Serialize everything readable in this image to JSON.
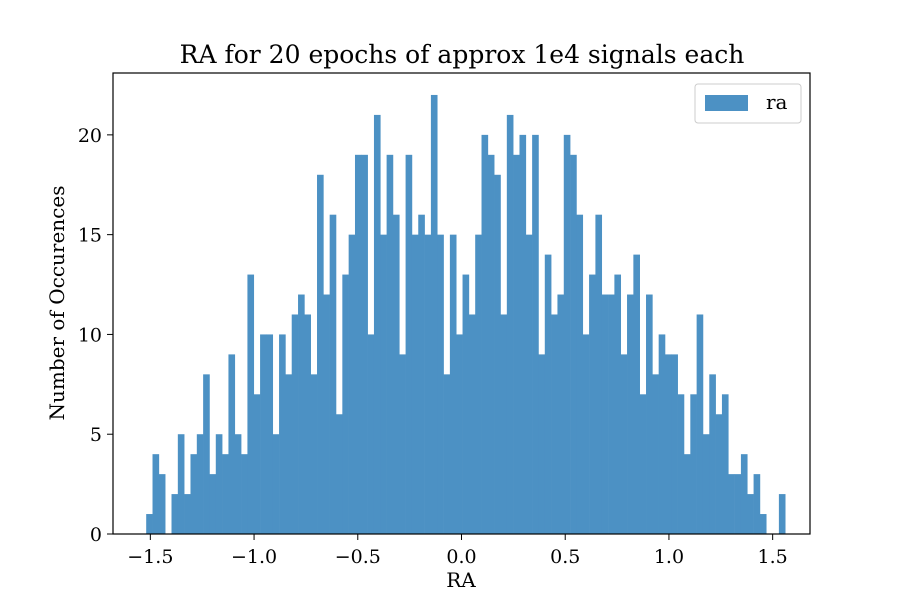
{
  "chart_data": {
    "type": "bar",
    "title": "RA for 20 epochs of approx 1e4 signals each",
    "xlabel": "RA",
    "ylabel": "Number of Occurences",
    "xlim": [
      -1.68,
      1.68
    ],
    "ylim": [
      0,
      23.1
    ],
    "xticks": [
      -1.5,
      -1.0,
      -0.5,
      0.0,
      0.5,
      1.0,
      1.5
    ],
    "xtick_labels": [
      "−1.5",
      "−1.0",
      "−0.5",
      "0.0",
      "0.5",
      "1.0",
      "1.5"
    ],
    "yticks": [
      0,
      5,
      10,
      15,
      20
    ],
    "ytick_labels": [
      "0",
      "5",
      "10",
      "15",
      "20"
    ],
    "bin_start": -1.52,
    "bin_width": 0.0305,
    "counts": [
      1,
      4,
      3,
      0,
      2,
      5,
      2,
      4,
      5,
      8,
      3,
      5,
      4,
      9,
      5,
      4,
      13,
      7,
      10,
      10,
      5,
      10,
      8,
      11,
      12,
      11,
      8,
      18,
      12,
      16,
      6,
      13,
      15,
      19,
      19,
      10,
      21,
      15,
      19,
      16,
      9,
      19,
      15,
      16,
      15,
      22,
      15,
      8,
      15,
      10,
      13,
      11,
      15,
      20,
      19,
      18,
      11,
      21,
      19,
      20,
      15,
      20,
      9,
      14,
      11,
      12,
      20,
      19,
      16,
      10,
      13,
      16,
      12,
      12,
      13,
      9,
      12,
      14,
      7,
      12,
      8,
      10,
      9,
      9,
      7,
      4,
      7,
      11,
      5,
      8,
      6,
      7,
      3,
      3,
      4,
      2,
      3,
      1,
      0,
      0,
      2
    ],
    "bar_color": "#4c91c4",
    "grid": false,
    "legend": {
      "entries": [
        "ra"
      ],
      "placement": "upper-right"
    }
  }
}
